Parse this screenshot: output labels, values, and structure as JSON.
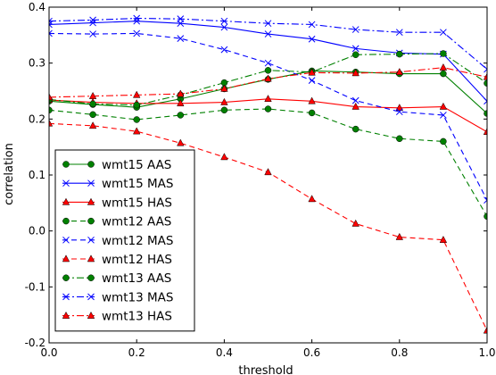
{
  "chart_data": {
    "type": "line",
    "xlabel": "threshold",
    "ylabel": "correlation",
    "xlim": [
      0.0,
      1.0
    ],
    "ylim": [
      -0.2,
      0.4
    ],
    "x_ticks": [
      "0.0",
      "0.2",
      "0.4",
      "0.6",
      "0.8",
      "1.0"
    ],
    "y_ticks": [
      "0.4",
      "0.3",
      "0.2",
      "0.1",
      "0.0",
      "-0.1",
      "-0.2"
    ],
    "x": [
      0.0,
      0.1,
      0.2,
      0.3,
      0.4,
      0.5,
      0.6,
      0.7,
      0.8,
      0.9,
      1.0
    ],
    "grid": false,
    "legend_position": "lower-left",
    "series": [
      {
        "name": "wmt15 AAS",
        "color": "#008000",
        "marker": "circle",
        "dash": "solid",
        "values": [
          0.232,
          0.226,
          0.221,
          0.236,
          0.254,
          0.271,
          0.286,
          0.284,
          0.281,
          0.281,
          0.21
        ]
      },
      {
        "name": "wmt15 MAS",
        "color": "#0000ff",
        "marker": "x",
        "dash": "solid",
        "values": [
          0.369,
          0.372,
          0.375,
          0.371,
          0.364,
          0.352,
          0.343,
          0.326,
          0.318,
          0.316,
          0.232
        ]
      },
      {
        "name": "wmt15 HAS",
        "color": "#ff0000",
        "marker": "triangle",
        "dash": "solid",
        "values": [
          0.234,
          0.23,
          0.228,
          0.228,
          0.23,
          0.236,
          0.232,
          0.222,
          0.22,
          0.222,
          0.177
        ]
      },
      {
        "name": "wmt12 AAS",
        "color": "#008000",
        "marker": "circle",
        "dash": "dashed",
        "values": [
          0.216,
          0.208,
          0.199,
          0.207,
          0.216,
          0.218,
          0.211,
          0.182,
          0.165,
          0.16,
          0.026
        ]
      },
      {
        "name": "wmt12 MAS",
        "color": "#0000ff",
        "marker": "x",
        "dash": "dashed",
        "values": [
          0.353,
          0.352,
          0.353,
          0.344,
          0.324,
          0.3,
          0.269,
          0.233,
          0.213,
          0.207,
          0.055
        ]
      },
      {
        "name": "wmt12 HAS",
        "color": "#ff0000",
        "marker": "triangle",
        "dash": "dashed",
        "values": [
          0.192,
          0.188,
          0.178,
          0.157,
          0.132,
          0.105,
          0.057,
          0.013,
          -0.011,
          -0.016,
          -0.178
        ]
      },
      {
        "name": "wmt13 AAS",
        "color": "#008000",
        "marker": "circle",
        "dash": "dashdot",
        "values": [
          0.235,
          0.227,
          0.225,
          0.243,
          0.265,
          0.287,
          0.284,
          0.315,
          0.316,
          0.317,
          0.264
        ]
      },
      {
        "name": "wmt13 MAS",
        "color": "#0000ff",
        "marker": "x",
        "dash": "dashdot",
        "values": [
          0.375,
          0.377,
          0.38,
          0.379,
          0.375,
          0.371,
          0.369,
          0.36,
          0.355,
          0.355,
          0.289
        ]
      },
      {
        "name": "wmt13 HAS",
        "color": "#ff0000",
        "marker": "triangle",
        "dash": "dashdot",
        "values": [
          0.239,
          0.241,
          0.243,
          0.245,
          0.254,
          0.272,
          0.283,
          0.282,
          0.284,
          0.292,
          0.275
        ]
      }
    ]
  }
}
